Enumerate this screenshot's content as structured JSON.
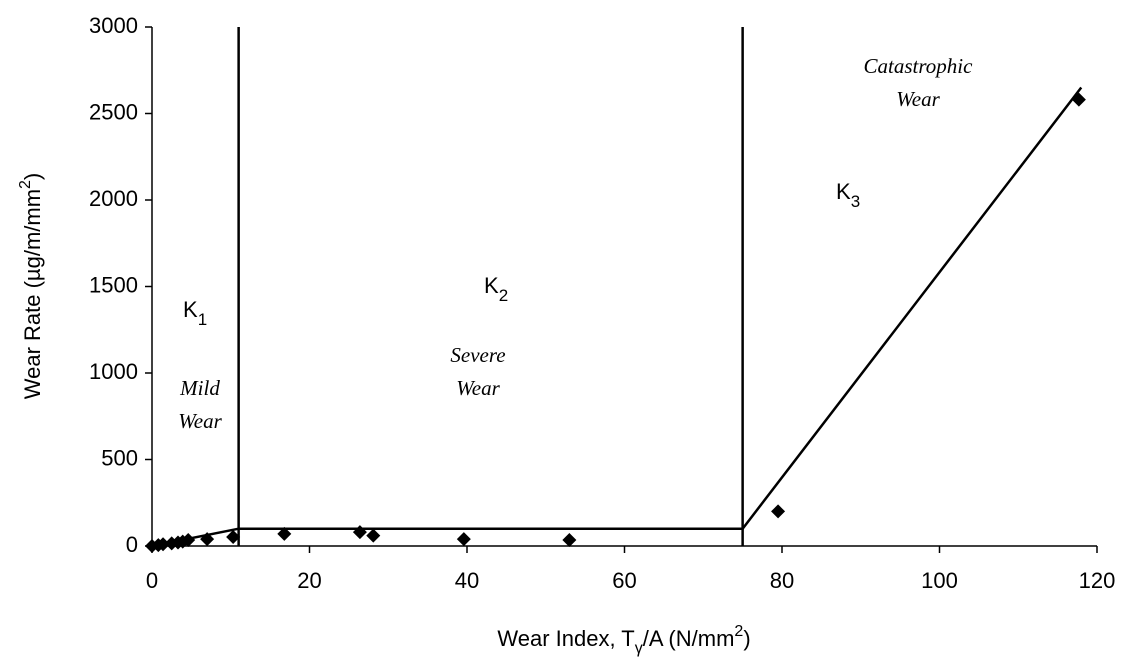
{
  "chart_data": {
    "type": "scatter",
    "x_label": [
      {
        "text": "Wear Index, T"
      },
      {
        "sub": "γ"
      },
      {
        "text": "/A (N/mm"
      },
      {
        "sup": "2"
      },
      {
        "text": ")"
      }
    ],
    "y_label": [
      {
        "text": "Wear Rate (µg/m/mm"
      },
      {
        "sup": "2"
      },
      {
        "text": ")"
      }
    ],
    "x": [
      0,
      0.8,
      1.4,
      2.5,
      3.3,
      3.9,
      4.6,
      7.0,
      10.3,
      16.8,
      26.4,
      28.1,
      39.6,
      53,
      79.5,
      117.7
    ],
    "values": [
      0,
      5,
      10,
      15,
      20,
      25,
      35,
      40,
      52,
      70,
      80,
      60,
      40,
      35,
      200,
      2580
    ],
    "color": "#000000",
    "fit_line": {
      "x": [
        0,
        11,
        75,
        118
      ],
      "y": [
        0,
        100,
        100,
        2650
      ]
    },
    "boundaries": [
      11,
      75
    ],
    "annotations": [
      {
        "text": "K",
        "sub": "1"
      },
      {
        "text": "K",
        "sub": "2"
      },
      {
        "text": "K",
        "sub": "3"
      },
      {
        "lines": [
          "Mild",
          "Wear"
        ]
      },
      {
        "lines": [
          "Severe",
          "Wear"
        ]
      },
      {
        "lines": [
          "Catastrophic",
          "Wear"
        ]
      }
    ],
    "xlim": [
      0,
      120
    ],
    "xticks": [
      0,
      20,
      40,
      60,
      80,
      100,
      120
    ],
    "ylim": [
      0,
      3000
    ],
    "yticks": [
      0,
      500,
      1000,
      1500,
      2000,
      2500,
      3000
    ]
  }
}
